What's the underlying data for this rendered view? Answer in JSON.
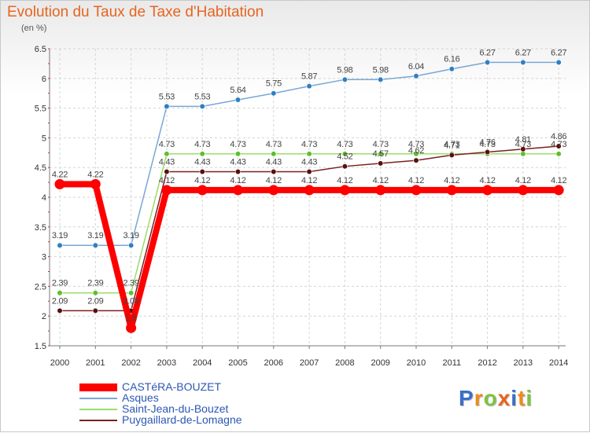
{
  "header": {
    "title": "Evolution du Taux de Taxe d'Habitation",
    "unit": "(en %)"
  },
  "brand": {
    "text": "Proxiti",
    "colors": [
      "#3a6fc9",
      "#f08a1c",
      "#7fc241",
      "#e8641e",
      "#3a6fc9",
      "#f08a1c",
      "#7fc241"
    ]
  },
  "chart_data": {
    "type": "line",
    "title": "Evolution du Taux de Taxe d'Habitation",
    "ylabel": "(en %)",
    "xlabel": "",
    "x": [
      "2000",
      "2001",
      "2002",
      "2003",
      "2004",
      "2005",
      "2006",
      "2007",
      "2008",
      "2009",
      "2010",
      "2011",
      "2012",
      "2013",
      "2014"
    ],
    "ylim": [
      1.5,
      6.5
    ],
    "yticks": [
      "1.5",
      "2",
      "2.5",
      "3",
      "3.5",
      "4",
      "4.5",
      "5",
      "5.5",
      "6",
      "6.5"
    ],
    "grid": true,
    "legend_position": "bottom-left",
    "series": [
      {
        "name": "CASTéRA-BOUZET",
        "color": "#ff0000",
        "point_color": "#ff0000",
        "emphasis": true,
        "values": [
          4.22,
          4.22,
          1.8,
          4.12,
          4.12,
          4.12,
          4.12,
          4.12,
          4.12,
          4.12,
          4.12,
          4.12,
          4.12,
          4.12,
          4.12
        ],
        "labels": [
          "4.22",
          "4.22",
          "1.8",
          "4.12",
          "4.12",
          "4.12",
          "4.12",
          "4.12",
          "4.12",
          "4.12",
          "4.12",
          "4.12",
          "4.12",
          "4.12",
          "4.12"
        ]
      },
      {
        "name": "Asques",
        "color": "#7aa6d6",
        "point_color": "#2f7fc2",
        "values": [
          3.19,
          3.19,
          3.19,
          5.53,
          5.53,
          5.64,
          5.75,
          5.87,
          5.98,
          5.98,
          6.04,
          6.16,
          6.27,
          6.27,
          6.27
        ],
        "labels": [
          "3.19",
          "3.19",
          "3.19",
          "5.53",
          "5.53",
          "5.64",
          "5.75",
          "5.87",
          "5.98",
          "5.98",
          "6.04",
          "6.16",
          "6.27",
          "6.27",
          "6.27"
        ]
      },
      {
        "name": "Saint-Jean-du-Bouzet",
        "color": "#9bdc6a",
        "point_color": "#5fbf2a",
        "values": [
          2.39,
          2.39,
          2.39,
          4.73,
          4.73,
          4.73,
          4.73,
          4.73,
          4.73,
          4.73,
          4.73,
          4.73,
          4.73,
          4.73,
          4.73
        ],
        "labels": [
          "2.39",
          "2.39",
          "2.39",
          "4.73",
          "4.73",
          "4.73",
          "4.73",
          "4.73",
          "4.73",
          "4.73",
          "4.73",
          "4.73",
          "4.73",
          "4.73",
          "4.73"
        ]
      },
      {
        "name": "Puygaillard-de-Lomagne",
        "color": "#7a2020",
        "point_color": "#5a0f0f",
        "values": [
          2.09,
          2.09,
          2.09,
          4.43,
          4.43,
          4.43,
          4.43,
          4.43,
          4.52,
          4.57,
          4.62,
          4.71,
          4.76,
          4.81,
          4.86
        ],
        "labels": [
          "2.09",
          "2.09",
          "2.09",
          "4.43",
          "4.43",
          "4.43",
          "4.43",
          "4.43",
          "4.52",
          "4.57",
          "4.62",
          "4.71",
          "4.76",
          "4.81",
          "4.86"
        ]
      }
    ]
  }
}
